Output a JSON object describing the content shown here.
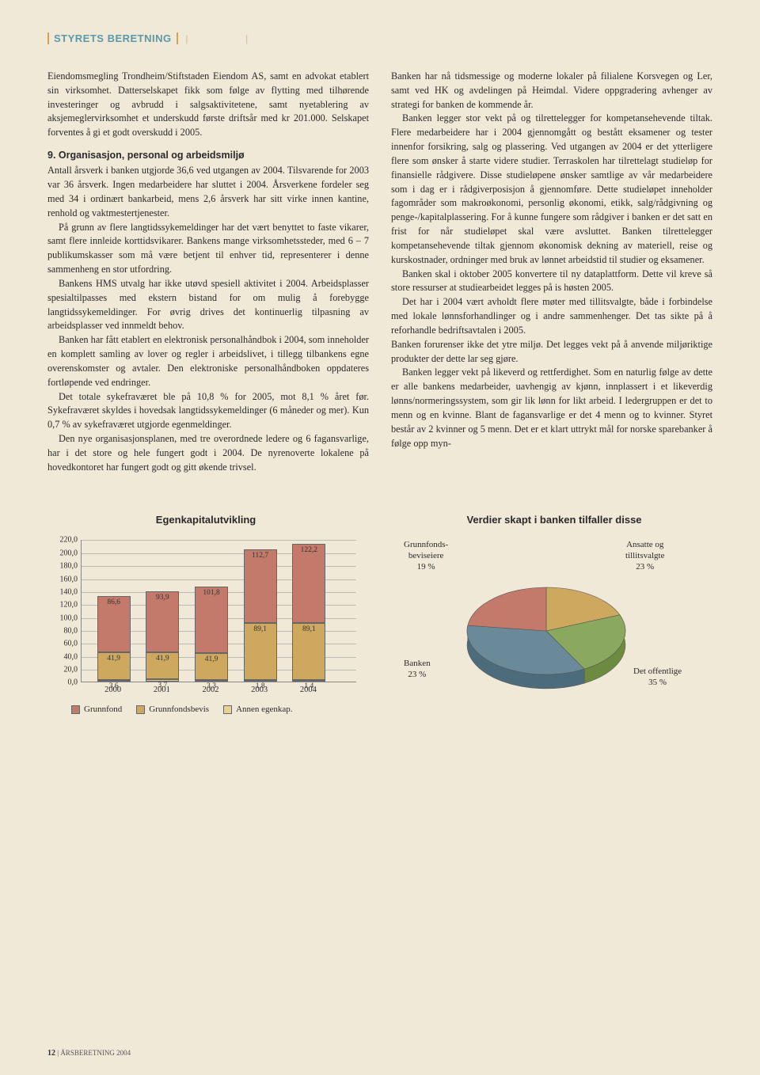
{
  "header": {
    "label": "STYRETS BERETNING"
  },
  "left_col": {
    "p1": "Eiendomsmegling Trondheim/Stiftstaden Eiendom AS, samt en advokat etablert sin virksomhet. Datterselskapet fikk som følge av flytting med tilhørende investeringer og avbrudd i salgsaktivitetene, samt nyetablering av aksjemeglervirksomhet et underskudd første driftsår med kr 201.000. Selskapet forventes å gi et godt overskudd i 2005.",
    "h1": "9. Organisasjon, personal og arbeidsmiljø",
    "p2": "Antall årsverk i banken utgjorde 36,6 ved utgangen av 2004. Tilsvarende for 2003 var 36 årsverk. Ingen medarbeidere har sluttet i 2004. Årsverkene fordeler seg med 34 i ordinært bankarbeid, mens 2,6 årsverk har sitt virke innen kantine, renhold og vaktmestertjenester.",
    "p3": "På grunn av flere langtidssykemeldinger har det vært benyttet to faste vikarer, samt flere innleide korttidsvikarer. Bankens mange virksomhetssteder, med 6 – 7 publikumskasser som må være betjent til enhver tid, representerer i denne sammenheng en stor utfordring.",
    "p4": "Bankens HMS utvalg har ikke utøvd spesiell aktivitet i 2004. Arbeidsplasser spesialtilpasses med ekstern bistand for om mulig å forebygge langtidssykemeldinger. For øvrig drives det kontinuerlig tilpasning av arbeidsplasser ved innmeldt behov.",
    "p5": "Banken har fått etablert en elektronisk personalhåndbok i 2004, som inneholder en komplett samling av lover og regler i arbeidslivet, i tillegg tilbankens egne overenskomster og avtaler. Den elektroniske personalhåndboken oppdateres fortløpende ved endringer.",
    "p6": "Det totale sykefraværet ble på 10,8 % for 2005, mot 8,1 % året før. Sykefraværet skyldes i hovedsak langtidssykemeldinger (6 måneder og mer). Kun 0,7 % av sykefraværet utgjorde egenmeldinger.",
    "p7": "Den nye organisasjonsplanen, med tre overordnede ledere og 6 fagansvarlige, har i det store og hele fungert godt i 2004. De nyrenoverte lokalene på hovedkontoret har fungert godt og gitt økende trivsel."
  },
  "right_col": {
    "p1": "Banken har nå tidsmessige og moderne lokaler på filialene Korsvegen og Ler, samt ved HK og avdelingen på Heimdal. Videre oppgradering avhenger av strategi for banken de kommende år.",
    "p2": "Banken legger stor vekt på og tilrettelegger for kompetansehevende tiltak. Flere medarbeidere har i 2004 gjennomgått og bestått eksamener og tester innenfor forsikring, salg og plassering. Ved utgangen av 2004 er det ytterligere flere som ønsker å starte videre studier. Terraskolen har tilrettelagt studieløp for finansielle rådgivere. Disse studieløpene ønsker samtlige av vår medarbeidere som i dag er i rådgiverposisjon å gjennomføre. Dette studieløpet inneholder fagområder som makroøkonomi, personlig økonomi, etikk, salg/rådgivning og penge-/kapitalplassering. For å kunne fungere som rådgiver i banken er det satt en frist for når studieløpet skal være avsluttet. Banken tilrettelegger kompetansehevende tiltak gjennom økonomisk dekning av materiell, reise og kurskostnader, ordninger med bruk av lønnet arbeidstid til studier og eksamener.",
    "p3": "Banken skal i oktober 2005 konvertere til ny dataplattform. Dette vil kreve så store ressurser at studiearbeidet legges på is høsten 2005.",
    "p4": "Det har i 2004 vært avholdt flere møter med tillitsvalgte, både i forbindelse med lokale lønnsforhandlinger og i andre sammenhenger. Det tas sikte på å reforhandle bedriftsavtalen i 2005.",
    "p4b": "Banken forurenser ikke det ytre miljø. Det legges vekt på å anvende miljøriktige produkter der dette lar seg gjøre.",
    "p5": "Banken legger vekt på likeverd og rettferdighet. Som en naturlig følge av dette er alle bankens medarbeider, uavhengig av kjønn, innplassert i et likeverdig lønns/normeringssystem, som gir lik lønn for likt arbeid. I ledergruppen er det to menn og en kvinne. Blant de fagansvarlige er det 4 menn og to kvinner. Styret består av 2 kvinner og 5 menn. Det er et klart uttrykt mål for norske sparebanker å følge opp myn-"
  },
  "bar_chart": {
    "title": "Egenkapitalutvikling",
    "ymax": 220,
    "ytick_step": 20,
    "categories": [
      "2000",
      "2001",
      "2002",
      "2003",
      "2004"
    ],
    "series": {
      "grunnfond": {
        "label": "Grunnfond",
        "color": "#c47a6a",
        "values": [
          86.6,
          93.9,
          101.8,
          112.7,
          122.2
        ]
      },
      "gfb": {
        "label": "Grunnfondsbevis",
        "color": "#cda85e",
        "values": [
          41.9,
          41.9,
          41.9,
          89.1,
          89.1
        ]
      },
      "annen": {
        "label": "Annen egenkap.",
        "color": "#e8d292",
        "values": [
          3.6,
          3.7,
          3.3,
          1.8,
          1.4
        ]
      }
    }
  },
  "pie_chart": {
    "title": "Verdier skapt i banken tilfaller disse",
    "slices": [
      {
        "label": "Grunnfonds-\nbeviseiere",
        "pct": "19 %",
        "color": "#cda85e"
      },
      {
        "label": "Ansatte og\ntillitsvalgte",
        "pct": "23 %",
        "color": "#8aa85e"
      },
      {
        "label": "Det offentlige",
        "pct": "35 %",
        "color": "#6a8a9a"
      },
      {
        "label": "Banken",
        "pct": "23 %",
        "color": "#c47a6a"
      }
    ]
  },
  "footer": {
    "page_num": "12",
    "label": "ÅRSBERETNING 2004"
  }
}
